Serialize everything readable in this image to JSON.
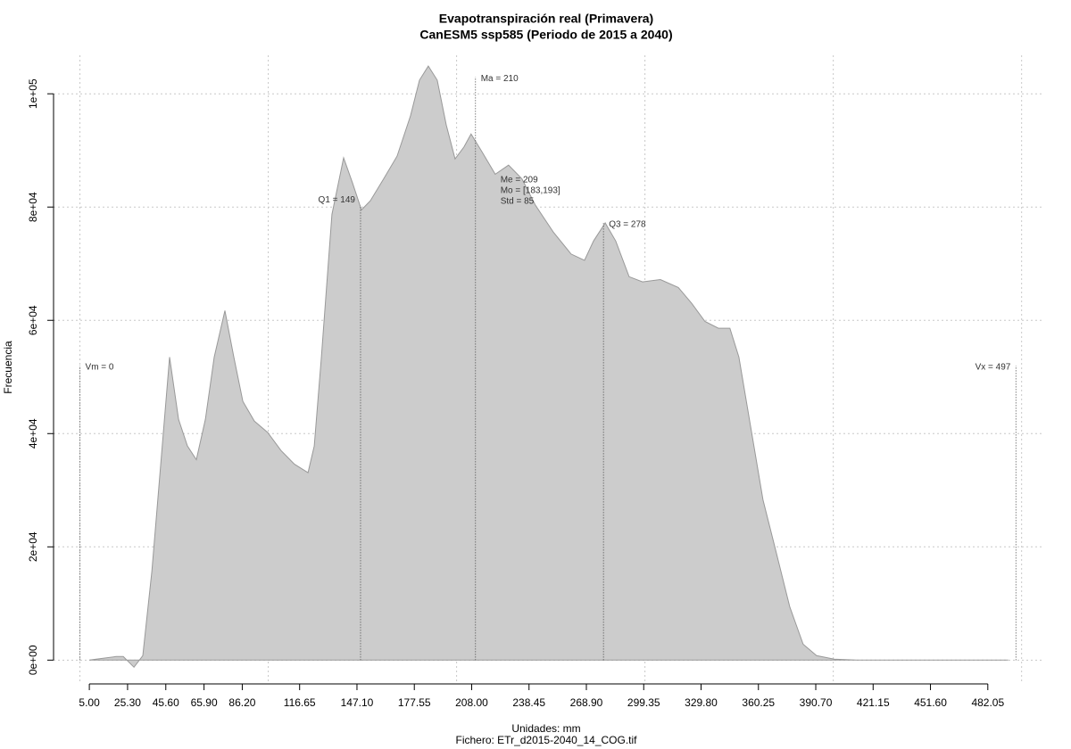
{
  "chart_data": {
    "type": "area",
    "title": "Evapotranspiración real (Primavera)",
    "subtitle": "CanESM5 ssp585 (Periodo de 2015 a 2040)",
    "xlabel": "Unidades: mm",
    "caption": "Fichero: ETr_d2015-2040_14_COG.tif",
    "ylabel": "Frecuencia",
    "color": "#cccccc",
    "line_color": "#999999",
    "x": [
      5,
      19.2,
      23,
      28.7,
      33.4,
      38.2,
      42.9,
      47.6,
      52.4,
      57.1,
      61.8,
      66.6,
      71.3,
      77,
      81.7,
      86.5,
      92.6,
      99.7,
      106.8,
      113.9,
      121.1,
      124.4,
      128.2,
      133.8,
      140,
      144.7,
      149.5,
      154.2,
      161.3,
      168.4,
      175.5,
      180.3,
      185,
      189.7,
      194.5,
      199.2,
      203.9,
      207.7,
      213.4,
      220.5,
      227.6,
      234.7,
      241.9,
      251.3,
      260.8,
      267.9,
      272.7,
      278.9,
      284.5,
      291.6,
      298.7,
      308.2,
      317.7,
      324.8,
      331.9,
      339,
      345.1,
      349.9,
      355.5,
      362.7,
      369.8,
      376.9,
      384,
      391.1,
      400.5,
      412.4,
      492.9
    ],
    "values": [
      0,
      630,
      630,
      -1260,
      790,
      15750,
      34600,
      53500,
      42500,
      37800,
      35400,
      42500,
      53500,
      61700,
      53500,
      45700,
      42200,
      40200,
      37000,
      34600,
      33100,
      37800,
      53500,
      78700,
      88700,
      84300,
      79500,
      81100,
      85000,
      89000,
      96100,
      102400,
      104900,
      102400,
      94500,
      88500,
      90600,
      92900,
      89800,
      85800,
      87400,
      85000,
      80300,
      75600,
      71700,
      70600,
      74000,
      77200,
      74000,
      67700,
      66800,
      67200,
      65800,
      63000,
      59800,
      58600,
      58600,
      53500,
      42500,
      28300,
      18900,
      9400,
      2800,
      790,
      160,
      0,
      0
    ],
    "xlim": [
      -14,
      512
    ],
    "ylim": [
      -4200,
      106800
    ],
    "xticks": [
      {
        "value": 5,
        "label": "5.00"
      },
      {
        "value": 25.3,
        "label": "25.30"
      },
      {
        "value": 45.6,
        "label": "45.60"
      },
      {
        "value": 65.9,
        "label": "65.90"
      },
      {
        "value": 86.2,
        "label": "86.20"
      },
      {
        "value": 116.65,
        "label": "116.65"
      },
      {
        "value": 147.1,
        "label": "147.10"
      },
      {
        "value": 177.55,
        "label": "177.55"
      },
      {
        "value": 208,
        "label": "208.00"
      },
      {
        "value": 238.45,
        "label": "238.45"
      },
      {
        "value": 268.9,
        "label": "268.90"
      },
      {
        "value": 299.35,
        "label": "299.35"
      },
      {
        "value": 329.8,
        "label": "329.80"
      },
      {
        "value": 360.25,
        "label": "360.25"
      },
      {
        "value": 390.7,
        "label": "390.70"
      },
      {
        "value": 421.15,
        "label": "421.15"
      },
      {
        "value": 451.6,
        "label": "451.60"
      },
      {
        "value": 482.05,
        "label": "482.05"
      }
    ],
    "yticks": [
      {
        "value": 0,
        "label": "0e+00"
      },
      {
        "value": 20000,
        "label": "2e+04"
      },
      {
        "value": 40000,
        "label": "4e+04"
      },
      {
        "value": 60000,
        "label": "6e+04"
      },
      {
        "value": 80000,
        "label": "8e+04"
      },
      {
        "value": 100000,
        "label": "1e+05"
      }
    ],
    "xgrid": [
      0,
      100,
      200,
      300,
      400,
      500
    ],
    "grid": true,
    "annotations": [
      {
        "x": 0,
        "top": 52000,
        "label": "Vm = 0"
      },
      {
        "x": 149,
        "top": 80300,
        "label": "Q1 = 149"
      },
      {
        "x": 210,
        "top": 103000,
        "label": "Ma = 210"
      },
      {
        "x": 278,
        "top": 77200,
        "label": "Q3 = 278"
      },
      {
        "x": 497,
        "top": 52000,
        "label": "Vx = 497"
      }
    ],
    "stats_text": [
      "Me = 209",
      "Mo = [183,193]",
      "Std = 85"
    ]
  }
}
